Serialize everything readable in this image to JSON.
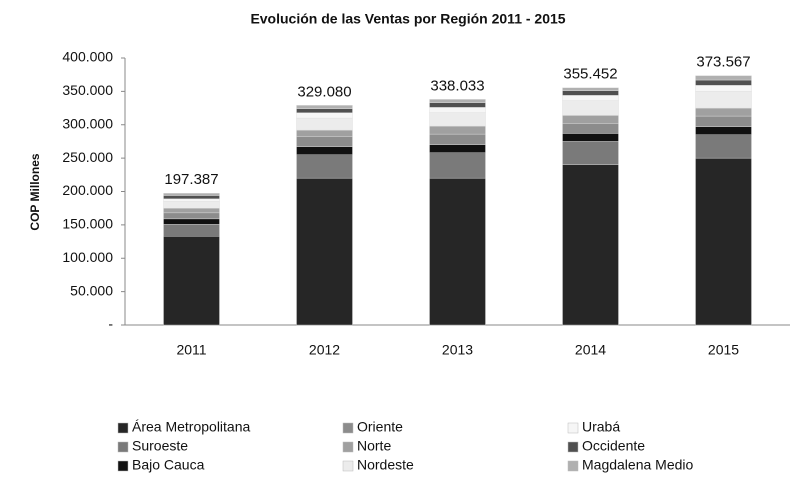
{
  "chart_data": {
    "type": "stacked_bar",
    "title": "Evolución de las Ventas por Región 2011 - 2015",
    "y_label": "COP Millones",
    "categories": [
      "2011",
      "2012",
      "2013",
      "2014",
      "2015"
    ],
    "series": [
      {
        "name": "Área Metropolitana",
        "color": "#262626",
        "values": [
          133000,
          220000,
          220000,
          240000,
          250000
        ]
      },
      {
        "name": "Suroeste",
        "color": "#7a7a7a",
        "values": [
          18000,
          35000,
          38000,
          35000,
          35000
        ]
      },
      {
        "name": "Bajo Cauca",
        "color": "#111111",
        "values": [
          8000,
          12000,
          12000,
          12000,
          12000
        ]
      },
      {
        "name": "Oriente",
        "color": "#8c8c8c",
        "values": [
          9000,
          15000,
          16000,
          15000,
          16000
        ]
      },
      {
        "name": "Norte",
        "color": "#a0a0a0",
        "values": [
          7000,
          10000,
          12000,
          12000,
          12000
        ]
      },
      {
        "name": "Nordeste",
        "color": "#ececec",
        "values": [
          10000,
          18000,
          20000,
          22000,
          25000
        ]
      },
      {
        "name": "Urabá",
        "color": "#f6f6f6",
        "values": [
          4000,
          8000,
          8000,
          8000,
          9000
        ]
      },
      {
        "name": "Occidente",
        "color": "#505050",
        "values": [
          5000,
          6000,
          7000,
          7000,
          8000
        ]
      },
      {
        "name": "Magdalena Medio",
        "color": "#b0b0b0",
        "values": [
          3387,
          5080,
          5033,
          4452,
          6567
        ]
      }
    ],
    "totals": {
      "values": [
        197387,
        329080,
        338033,
        355452,
        373567
      ],
      "value_labels": [
        "197.387",
        "329.080",
        "338.033",
        "355.452",
        "373.567"
      ]
    },
    "ylim": [
      0,
      400000
    ],
    "yticks": [
      {
        "value": 0,
        "label": "-"
      },
      {
        "value": 50000,
        "label": "50.000"
      },
      {
        "value": 100000,
        "label": "100.000"
      },
      {
        "value": 150000,
        "label": "150.000"
      },
      {
        "value": 200000,
        "label": "200.000"
      },
      {
        "value": 250000,
        "label": "250.000"
      },
      {
        "value": 300000,
        "label": "300.000"
      },
      {
        "value": 350000,
        "label": "350.000"
      },
      {
        "value": 400000,
        "label": "400.000"
      }
    ],
    "legend": "bottom"
  }
}
